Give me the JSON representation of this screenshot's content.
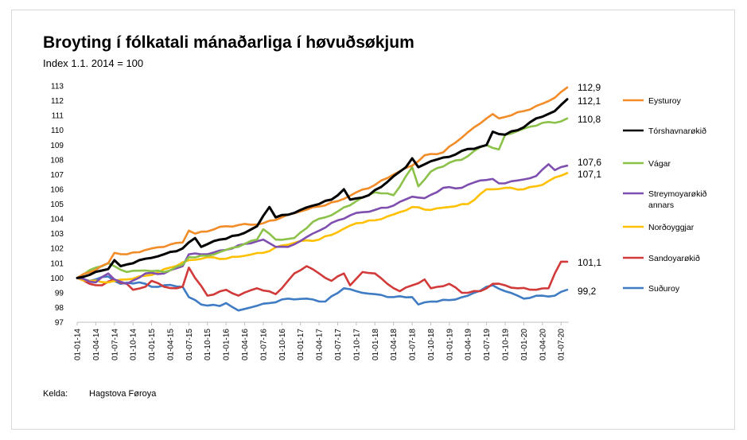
{
  "title": "Broyting í fólkatali mánaðarliga í høvuðsøkjum",
  "subtitle": "Index 1.1. 2014 = 100",
  "source": {
    "label": "Kelda:",
    "value": "Hagstova Føroya"
  },
  "chart_data": {
    "type": "line",
    "title": "Broyting í fólkatali mánaðarliga í høvuðsøkjum",
    "subtitle": "Index 1.1. 2014 = 100",
    "ylim": [
      97,
      113
    ],
    "yticks": [
      97,
      98,
      99,
      100,
      101,
      102,
      103,
      104,
      105,
      106,
      107,
      108,
      109,
      110,
      111,
      112,
      113
    ],
    "grid": false,
    "legend": "right",
    "x_start": "2014-01",
    "x_end": "2020-08",
    "xtick_labels": [
      "01-01-14",
      "01-04-14",
      "01-07-14",
      "01-10-14",
      "01-01-15",
      "01-04-15",
      "01-07-15",
      "01-10-15",
      "01-01-16",
      "01-04-16",
      "01-07-16",
      "01-10-16",
      "01-01-17",
      "01-04-17",
      "01-07-17",
      "01-10-17",
      "01-01-18",
      "01-04-18",
      "01-07-18",
      "01-10-18",
      "01-01-19",
      "01-04-19",
      "01-07-19",
      "01-10-19",
      "01-01-20",
      "01-04-20",
      "01-07-20"
    ],
    "series": [
      {
        "name": "Eysturoy",
        "color": "#f28c28",
        "end_label": "112,9",
        "keypoints": [
          [
            "2014-01",
            100
          ],
          [
            "2014-06",
            101.0
          ],
          [
            "2014-07",
            101.7
          ],
          [
            "2014-09",
            101.6
          ],
          [
            "2015-01",
            102.0
          ],
          [
            "2015-06",
            102.4
          ],
          [
            "2015-07",
            103.2
          ],
          [
            "2015-08",
            103.0
          ],
          [
            "2016-01",
            103.5
          ],
          [
            "2016-07",
            103.7
          ],
          [
            "2016-10",
            104.1
          ],
          [
            "2017-01",
            104.5
          ],
          [
            "2017-07",
            105.2
          ],
          [
            "2017-10",
            105.8
          ],
          [
            "2018-01",
            106.3
          ],
          [
            "2018-04",
            107.0
          ],
          [
            "2018-07",
            107.6
          ],
          [
            "2018-09",
            108.3
          ],
          [
            "2018-12",
            108.5
          ],
          [
            "2019-03",
            109.5
          ],
          [
            "2019-05",
            110.2
          ],
          [
            "2019-07",
            110.8
          ],
          [
            "2019-08",
            111.1
          ],
          [
            "2019-09",
            110.8
          ],
          [
            "2019-10",
            110.9
          ],
          [
            "2020-01",
            111.3
          ],
          [
            "2020-04",
            111.8
          ],
          [
            "2020-06",
            112.2
          ],
          [
            "2020-08",
            112.9
          ]
        ]
      },
      {
        "name": "Tórshavnarøkið",
        "color": "#000000",
        "end_label": "112,1",
        "keypoints": [
          [
            "2014-01",
            100
          ],
          [
            "2014-06",
            100.6
          ],
          [
            "2014-07",
            101.2
          ],
          [
            "2014-08",
            100.8
          ],
          [
            "2014-12",
            101.3
          ],
          [
            "2015-03",
            101.6
          ],
          [
            "2015-06",
            102.0
          ],
          [
            "2015-08",
            102.7
          ],
          [
            "2015-09",
            102.1
          ],
          [
            "2015-12",
            102.6
          ],
          [
            "2016-03",
            102.9
          ],
          [
            "2016-06",
            103.5
          ],
          [
            "2016-07",
            104.2
          ],
          [
            "2016-08",
            104.8
          ],
          [
            "2016-09",
            104.1
          ],
          [
            "2016-12",
            104.4
          ],
          [
            "2017-03",
            104.9
          ],
          [
            "2017-06",
            105.3
          ],
          [
            "2017-08",
            106.0
          ],
          [
            "2017-09",
            105.3
          ],
          [
            "2017-12",
            105.6
          ],
          [
            "2018-03",
            106.5
          ],
          [
            "2018-06",
            107.5
          ],
          [
            "2018-07",
            108.1
          ],
          [
            "2018-08",
            107.5
          ],
          [
            "2018-10",
            107.9
          ],
          [
            "2019-01",
            108.2
          ],
          [
            "2019-03",
            108.6
          ],
          [
            "2019-07",
            109.0
          ],
          [
            "2019-08",
            109.9
          ],
          [
            "2019-10",
            109.7
          ],
          [
            "2020-01",
            110.2
          ],
          [
            "2020-03",
            110.8
          ],
          [
            "2020-06",
            111.3
          ],
          [
            "2020-08",
            112.1
          ]
        ]
      },
      {
        "name": "Vágar",
        "color": "#8cc24a",
        "end_label": "110,8",
        "keypoints": [
          [
            "2014-01",
            100
          ],
          [
            "2014-04",
            100.7
          ],
          [
            "2014-06",
            101.0
          ],
          [
            "2014-07",
            100.8
          ],
          [
            "2014-09",
            100.4
          ],
          [
            "2014-12",
            100.5
          ],
          [
            "2015-03",
            100.4
          ],
          [
            "2015-06",
            100.9
          ],
          [
            "2015-07",
            101.4
          ],
          [
            "2015-10",
            101.5
          ],
          [
            "2016-01",
            101.9
          ],
          [
            "2016-04",
            102.3
          ],
          [
            "2016-06",
            102.6
          ],
          [
            "2016-07",
            103.3
          ],
          [
            "2016-09",
            102.6
          ],
          [
            "2016-12",
            102.7
          ],
          [
            "2017-03",
            103.8
          ],
          [
            "2017-05",
            104.1
          ],
          [
            "2017-07",
            104.5
          ],
          [
            "2017-10",
            105.2
          ],
          [
            "2018-01",
            105.8
          ],
          [
            "2018-04",
            105.6
          ],
          [
            "2018-07",
            107.5
          ],
          [
            "2018-08",
            106.2
          ],
          [
            "2018-10",
            107.2
          ],
          [
            "2019-01",
            107.8
          ],
          [
            "2019-03",
            108.0
          ],
          [
            "2019-05",
            108.6
          ],
          [
            "2019-07",
            109.0
          ],
          [
            "2019-09",
            108.7
          ],
          [
            "2019-10",
            109.7
          ],
          [
            "2020-01",
            110.1
          ],
          [
            "2020-04",
            110.5
          ],
          [
            "2020-06",
            110.5
          ],
          [
            "2020-08",
            110.8
          ]
        ]
      },
      {
        "name": "Streymoyarøkið annars",
        "color": "#7f4fb0",
        "end_label": "107,6",
        "keypoints": [
          [
            "2014-01",
            100
          ],
          [
            "2014-04",
            99.7
          ],
          [
            "2014-06",
            100.3
          ],
          [
            "2014-07",
            99.9
          ],
          [
            "2014-09",
            99.6
          ],
          [
            "2014-12",
            100.3
          ],
          [
            "2015-03",
            100.3
          ],
          [
            "2015-06",
            100.8
          ],
          [
            "2015-07",
            101.6
          ],
          [
            "2015-10",
            101.6
          ],
          [
            "2016-01",
            101.9
          ],
          [
            "2016-04",
            102.3
          ],
          [
            "2016-07",
            102.6
          ],
          [
            "2016-09",
            102.1
          ],
          [
            "2016-11",
            102.1
          ],
          [
            "2017-01",
            102.5
          ],
          [
            "2017-04",
            103.2
          ],
          [
            "2017-07",
            103.9
          ],
          [
            "2017-10",
            104.4
          ],
          [
            "2018-01",
            104.6
          ],
          [
            "2018-04",
            104.9
          ],
          [
            "2018-07",
            105.5
          ],
          [
            "2018-09",
            105.4
          ],
          [
            "2018-12",
            106.1
          ],
          [
            "2019-03",
            106.1
          ],
          [
            "2019-06",
            106.6
          ],
          [
            "2019-08",
            106.7
          ],
          [
            "2019-09",
            106.4
          ],
          [
            "2019-12",
            106.6
          ],
          [
            "2020-03",
            106.9
          ],
          [
            "2020-05",
            107.7
          ],
          [
            "2020-06",
            107.3
          ],
          [
            "2020-08",
            107.6
          ]
        ]
      },
      {
        "name": "Norðoyggjar",
        "color": "#ffc000",
        "end_label": "107,1",
        "keypoints": [
          [
            "2014-01",
            100
          ],
          [
            "2014-03",
            99.8
          ],
          [
            "2014-06",
            99.7
          ],
          [
            "2014-09",
            99.9
          ],
          [
            "2015-01",
            100.2
          ],
          [
            "2015-04",
            100.7
          ],
          [
            "2015-07",
            101.2
          ],
          [
            "2015-10",
            101.4
          ],
          [
            "2016-01",
            101.3
          ],
          [
            "2016-04",
            101.5
          ],
          [
            "2016-07",
            101.7
          ],
          [
            "2016-10",
            102.2
          ],
          [
            "2017-01",
            102.5
          ],
          [
            "2017-04",
            102.6
          ],
          [
            "2017-07",
            103.1
          ],
          [
            "2017-10",
            103.7
          ],
          [
            "2018-01",
            103.9
          ],
          [
            "2018-04",
            104.3
          ],
          [
            "2018-07",
            104.8
          ],
          [
            "2018-10",
            104.6
          ],
          [
            "2019-01",
            104.8
          ],
          [
            "2019-04",
            105.0
          ],
          [
            "2019-07",
            106.0
          ],
          [
            "2019-10",
            106.1
          ],
          [
            "2020-01",
            106.0
          ],
          [
            "2020-04",
            106.3
          ],
          [
            "2020-06",
            106.8
          ],
          [
            "2020-08",
            107.1
          ]
        ]
      },
      {
        "name": "Sandoyarøkið",
        "color": "#d23a3a",
        "end_label": "101,1",
        "keypoints": [
          [
            "2014-01",
            100
          ],
          [
            "2014-03",
            99.6
          ],
          [
            "2014-05",
            99.5
          ],
          [
            "2014-07",
            99.9
          ],
          [
            "2014-09",
            99.6
          ],
          [
            "2014-10",
            99.2
          ],
          [
            "2014-12",
            99.4
          ],
          [
            "2015-01",
            99.8
          ],
          [
            "2015-03",
            99.4
          ],
          [
            "2015-05",
            99.3
          ],
          [
            "2015-06",
            99.4
          ],
          [
            "2015-07",
            100.7
          ],
          [
            "2015-08",
            100.0
          ],
          [
            "2015-10",
            98.8
          ],
          [
            "2016-01",
            99.2
          ],
          [
            "2016-03",
            98.8
          ],
          [
            "2016-06",
            99.3
          ],
          [
            "2016-09",
            98.9
          ],
          [
            "2016-10",
            99.3
          ],
          [
            "2016-12",
            100.3
          ],
          [
            "2017-02",
            100.8
          ],
          [
            "2017-04",
            100.3
          ],
          [
            "2017-06",
            99.8
          ],
          [
            "2017-08",
            100.3
          ],
          [
            "2017-09",
            99.5
          ],
          [
            "2017-11",
            100.4
          ],
          [
            "2018-01",
            100.3
          ],
          [
            "2018-03",
            99.6
          ],
          [
            "2018-05",
            99.1
          ],
          [
            "2018-07",
            99.5
          ],
          [
            "2018-09",
            99.9
          ],
          [
            "2018-10",
            99.3
          ],
          [
            "2019-01",
            99.6
          ],
          [
            "2019-03",
            99.0
          ],
          [
            "2019-06",
            99.1
          ],
          [
            "2019-08",
            99.6
          ],
          [
            "2019-10",
            99.5
          ],
          [
            "2019-12",
            99.3
          ],
          [
            "2020-03",
            99.2
          ],
          [
            "2020-05",
            99.3
          ],
          [
            "2020-06",
            100.3
          ],
          [
            "2020-07",
            101.1
          ],
          [
            "2020-08",
            101.1
          ]
        ]
      },
      {
        "name": "Suðuroy",
        "color": "#3f7cc4",
        "end_label": "99,2",
        "keypoints": [
          [
            "2014-01",
            100
          ],
          [
            "2014-03",
            99.8
          ],
          [
            "2014-06",
            100.1
          ],
          [
            "2014-08",
            99.6
          ],
          [
            "2014-11",
            99.7
          ],
          [
            "2015-01",
            99.4
          ],
          [
            "2015-03",
            99.5
          ],
          [
            "2015-06",
            99.4
          ],
          [
            "2015-07",
            98.7
          ],
          [
            "2015-09",
            98.2
          ],
          [
            "2015-12",
            98.1
          ],
          [
            "2016-01",
            98.3
          ],
          [
            "2016-03",
            97.8
          ],
          [
            "2016-05",
            98.0
          ],
          [
            "2016-08",
            98.3
          ],
          [
            "2016-11",
            98.6
          ],
          [
            "2017-02",
            98.6
          ],
          [
            "2017-05",
            98.4
          ],
          [
            "2017-08",
            99.3
          ],
          [
            "2017-10",
            99.1
          ],
          [
            "2018-01",
            98.9
          ],
          [
            "2018-04",
            98.7
          ],
          [
            "2018-07",
            98.7
          ],
          [
            "2018-08",
            98.2
          ],
          [
            "2018-10",
            98.4
          ],
          [
            "2019-01",
            98.5
          ],
          [
            "2019-04",
            98.8
          ],
          [
            "2019-07",
            99.4
          ],
          [
            "2019-08",
            99.5
          ],
          [
            "2019-10",
            99.1
          ],
          [
            "2020-01",
            98.6
          ],
          [
            "2020-04",
            98.8
          ],
          [
            "2020-06",
            98.8
          ],
          [
            "2020-08",
            99.2
          ]
        ]
      }
    ]
  }
}
